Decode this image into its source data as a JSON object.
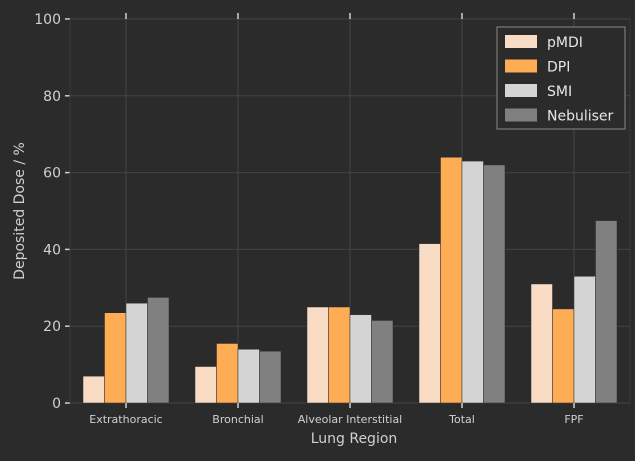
{
  "chart_data": {
    "type": "bar",
    "title": "",
    "xlabel": "Lung Region",
    "ylabel": "Deposited Dose / %",
    "ylim": [
      0,
      100
    ],
    "yticks": [
      0,
      20,
      40,
      60,
      80,
      100
    ],
    "grid": true,
    "legend_position": "top-right",
    "categories": [
      "Extrathoracic",
      "Bronchial",
      "Alveolar Interstitial",
      "Total",
      "FPF"
    ],
    "series": [
      {
        "name": "pMDI",
        "color": "#f8dcc6",
        "values": [
          7,
          9.5,
          25,
          41.5,
          31
        ]
      },
      {
        "name": "DPI",
        "color": "#ffad55",
        "values": [
          23.5,
          15.5,
          25,
          64,
          24.5
        ]
      },
      {
        "name": "SMI",
        "color": "#d4d4d4",
        "values": [
          26,
          14,
          23,
          63,
          33
        ]
      },
      {
        "name": "Nebuliser",
        "color": "#808080",
        "values": [
          27.5,
          13.5,
          21.5,
          62,
          47.5
        ]
      }
    ]
  },
  "colors": {
    "background": "#2b2b2b",
    "axis": "#cfcfcf",
    "grid": "#444444",
    "text": "#d0d0d0"
  }
}
